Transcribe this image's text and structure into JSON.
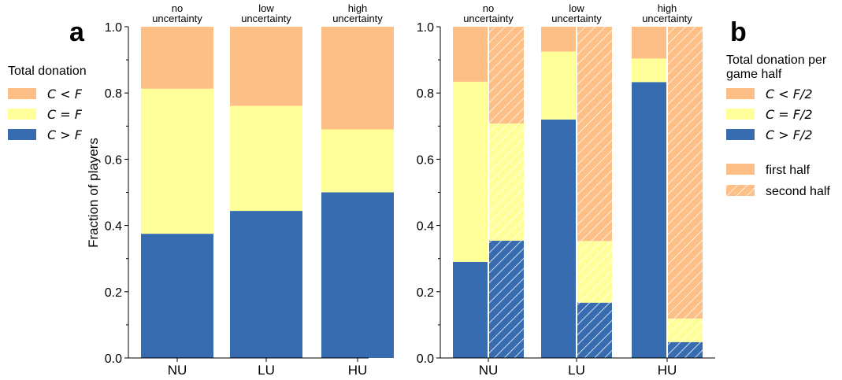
{
  "colors": {
    "orange": "#FDBF86",
    "yellow": "#FFFF99",
    "blue": "#386CB0"
  },
  "panel_letters": [
    "a",
    "b"
  ],
  "ylabel": "Fraction of players",
  "yticks": [
    "0.0",
    "0.2",
    "0.4",
    "0.6",
    "0.8",
    "1.0"
  ],
  "chart_data": [
    {
      "type": "bar",
      "stacked": true,
      "panel": "a",
      "categories": [
        "NU",
        "LU",
        "HU"
      ],
      "top_labels": [
        [
          "no",
          "uncertainty"
        ],
        [
          "low",
          "uncertainty"
        ],
        [
          "high",
          "uncertainty"
        ]
      ],
      "ylim": [
        0,
        1
      ],
      "ylabel": "Fraction of players",
      "legend_title": "Total donation",
      "series": [
        {
          "name": "C > F",
          "color": "blue",
          "values": [
            0.375,
            0.444,
            0.5
          ]
        },
        {
          "name": "C = F",
          "color": "yellow",
          "values": [
            0.438,
            0.317,
            0.19
          ]
        },
        {
          "name": "C < F",
          "color": "orange",
          "values": [
            0.187,
            0.239,
            0.31
          ]
        }
      ]
    },
    {
      "type": "bar",
      "stacked": true,
      "panel": "b",
      "categories": [
        "NU",
        "LU",
        "HU"
      ],
      "top_labels": [
        [
          "no",
          "uncertainty"
        ],
        [
          "low",
          "uncertainty"
        ],
        [
          "high",
          "uncertainty"
        ]
      ],
      "ylim": [
        0,
        1
      ],
      "legend_title": [
        "Total donation per",
        "game half"
      ],
      "halves": [
        "first half",
        "second half"
      ],
      "series": [
        {
          "name": "C > F/2",
          "color": "blue",
          "first_half": [
            0.29,
            0.72,
            0.833
          ],
          "second_half": [
            0.354,
            0.167,
            0.048
          ]
        },
        {
          "name": "C = F/2",
          "color": "yellow",
          "first_half": [
            0.544,
            0.205,
            0.071
          ],
          "second_half": [
            0.354,
            0.186,
            0.071
          ]
        },
        {
          "name": "C < F/2",
          "color": "orange",
          "first_half": [
            0.166,
            0.075,
            0.096
          ],
          "second_half": [
            0.292,
            0.647,
            0.881
          ]
        }
      ]
    }
  ]
}
